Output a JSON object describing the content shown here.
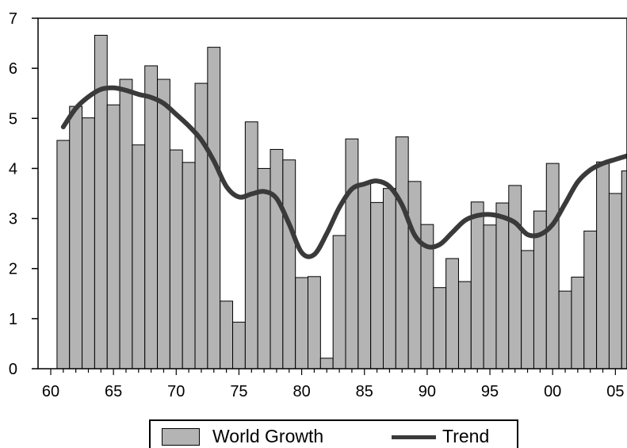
{
  "chart_data": {
    "type": "bar",
    "title": "",
    "xlabel": "",
    "ylabel": "",
    "ylim": [
      0,
      7
    ],
    "yticks": [
      "0",
      "1",
      "2",
      "3",
      "4",
      "5",
      "6",
      "7"
    ],
    "xtick_labels": [
      "60",
      "65",
      "70",
      "75",
      "80",
      "85",
      "90",
      "95",
      "00",
      "05"
    ],
    "x": [
      1961,
      1962,
      1963,
      1964,
      1965,
      1966,
      1967,
      1968,
      1969,
      1970,
      1971,
      1972,
      1973,
      1974,
      1975,
      1976,
      1977,
      1978,
      1979,
      1980,
      1981,
      1982,
      1983,
      1984,
      1985,
      1986,
      1987,
      1988,
      1989,
      1990,
      1991,
      1992,
      1993,
      1994,
      1995,
      1996,
      1997,
      1998,
      1999,
      2000,
      2001,
      2002,
      2003,
      2004,
      2005,
      2006
    ],
    "series": [
      {
        "name": "World Growth",
        "type": "bar",
        "color": "#b4b4b4",
        "values": [
          4.56,
          5.24,
          5.01,
          6.66,
          5.27,
          5.78,
          4.47,
          6.05,
          5.78,
          4.37,
          4.12,
          5.7,
          6.42,
          1.35,
          0.93,
          4.93,
          4.0,
          4.38,
          4.17,
          1.82,
          1.84,
          0.21,
          2.66,
          4.59,
          3.69,
          3.32,
          3.6,
          4.63,
          3.74,
          2.88,
          1.62,
          2.2,
          1.74,
          3.33,
          2.87,
          3.31,
          3.66,
          2.36,
          3.15,
          4.1,
          1.55,
          1.83,
          2.75,
          4.13,
          3.5,
          3.95
        ]
      },
      {
        "name": "Trend",
        "type": "line",
        "color": "#3a3a3a",
        "values": [
          4.83,
          5.2,
          5.43,
          5.58,
          5.61,
          5.56,
          5.48,
          5.42,
          5.3,
          5.08,
          4.85,
          4.57,
          4.15,
          3.64,
          3.43,
          3.49,
          3.54,
          3.4,
          2.89,
          2.32,
          2.28,
          2.7,
          3.22,
          3.59,
          3.69,
          3.75,
          3.64,
          3.27,
          2.67,
          2.44,
          2.48,
          2.72,
          2.96,
          3.06,
          3.08,
          3.03,
          2.92,
          2.68,
          2.68,
          2.88,
          3.3,
          3.73,
          3.97,
          4.1,
          4.18,
          4.25
        ]
      }
    ],
    "legend": {
      "placement": "bottom-center"
    },
    "grid": false
  }
}
